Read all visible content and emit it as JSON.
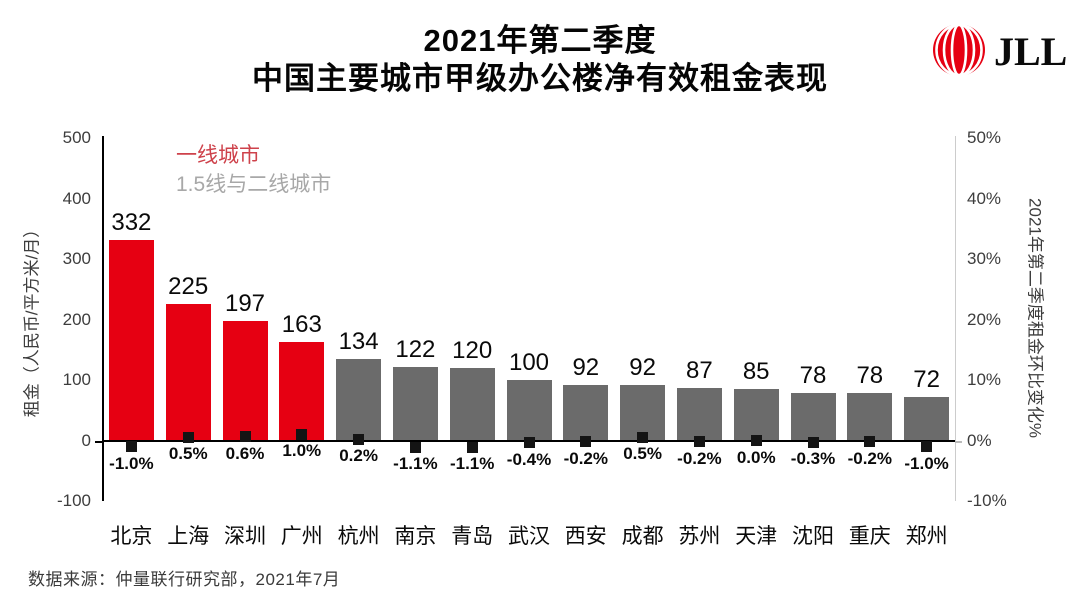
{
  "header": {
    "title_line1": "2021年第二季度",
    "title_line2": "中国主要城市甲级办公楼净有效租金表现",
    "logo_text": "JLL"
  },
  "legend_items": [
    {
      "label": "一线城市",
      "color": "#ce424b"
    },
    {
      "label": "1.5线与二线城市",
      "color": "#a8a8a8"
    }
  ],
  "chart_data": {
    "type": "bar",
    "title": "2021年第二季度 中国主要城市甲级办公楼净有效租金表现",
    "categories": [
      "北京",
      "上海",
      "深圳",
      "广州",
      "杭州",
      "南京",
      "青岛",
      "武汉",
      "西安",
      "成都",
      "苏州",
      "天津",
      "沈阳",
      "重庆",
      "郑州"
    ],
    "series": [
      {
        "name": "租金",
        "type": "bar",
        "axis": "left",
        "values": [
          332,
          225,
          197,
          163,
          134,
          122,
          120,
          100,
          92,
          92,
          87,
          85,
          78,
          78,
          72
        ]
      },
      {
        "name": "2021年第二季度租金环比变化%",
        "type": "point",
        "axis": "right",
        "values": [
          -1.0,
          0.5,
          0.6,
          1.0,
          0.2,
          -1.1,
          -1.1,
          -0.4,
          -0.2,
          0.5,
          -0.2,
          0.0,
          -0.3,
          -0.2,
          -1.0
        ],
        "labels": [
          "-1.0%",
          "0.5%",
          "0.6%",
          "1.0%",
          "0.2%",
          "-1.1%",
          "-1.1%",
          "-0.4%",
          "-0.2%",
          "0.5%",
          "-0.2%",
          "0.0%",
          "-0.3%",
          "-0.2%",
          "-1.0%"
        ]
      }
    ],
    "tier1_count": 4,
    "colors": {
      "tier1": "#e60012",
      "tier2": "#6b6b6b",
      "marker": "#141414"
    },
    "left_axis": {
      "label": "租金（人民币/平方米/月）",
      "ticks": [
        500,
        400,
        300,
        200,
        100,
        0,
        -100
      ],
      "min": -100,
      "max": 500
    },
    "right_axis": {
      "label": "2021年第二季度租金环比变化%",
      "ticks": [
        "50%",
        "40%",
        "30%",
        "20%",
        "10%",
        "0%",
        "-10%"
      ],
      "min": -10,
      "max": 50
    },
    "grid": false,
    "legend_position": "top-left"
  },
  "footer": {
    "source": "数据来源：仲量联行研究部，2021年7月"
  }
}
